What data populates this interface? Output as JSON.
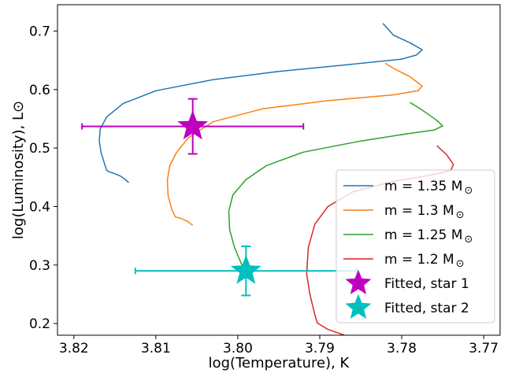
{
  "chart_data": {
    "type": "line",
    "xlabel": "log(Temperature), K",
    "ylabel": "log(Luminosity), L⊙",
    "xlim": [
      3.822,
      3.768
    ],
    "ylim": [
      0.18,
      0.745
    ],
    "x_reversed": true,
    "xticks": [
      3.82,
      3.81,
      3.8,
      3.79,
      3.78,
      3.77
    ],
    "xtick_labels": [
      "3.82",
      "3.81",
      "3.80",
      "3.79",
      "3.78",
      "3.77"
    ],
    "yticks": [
      0.2,
      0.3,
      0.4,
      0.5,
      0.6,
      0.7
    ],
    "ytick_labels": [
      "0.2",
      "0.3",
      "0.4",
      "0.5",
      "0.6",
      "0.7"
    ],
    "grid": false,
    "legend_position": "lower-right",
    "series": [
      {
        "name": "m = 1.35 M",
        "subscript": "⊙",
        "color": "#1f77b4",
        "points": [
          [
            3.8133,
            0.441
          ],
          [
            3.8138,
            0.447
          ],
          [
            3.8143,
            0.452
          ],
          [
            3.815,
            0.456
          ],
          [
            3.8158,
            0.46
          ],
          [
            3.816,
            0.462
          ],
          [
            3.8163,
            0.475
          ],
          [
            3.8167,
            0.493
          ],
          [
            3.8169,
            0.512
          ],
          [
            3.8168,
            0.532
          ],
          [
            3.816,
            0.553
          ],
          [
            3.814,
            0.576
          ],
          [
            3.81,
            0.598
          ],
          [
            3.803,
            0.617
          ],
          [
            3.795,
            0.631
          ],
          [
            3.787,
            0.642
          ],
          [
            3.78,
            0.652
          ],
          [
            3.7782,
            0.659
          ],
          [
            3.7775,
            0.668
          ],
          [
            3.779,
            0.68
          ],
          [
            3.781,
            0.693
          ],
          [
            3.7823,
            0.713
          ]
        ]
      },
      {
        "name": "m = 1.3 M",
        "subscript": "⊙",
        "color": "#ff7f0e",
        "points": [
          [
            3.8055,
            0.368
          ],
          [
            3.8062,
            0.375
          ],
          [
            3.807,
            0.38
          ],
          [
            3.8076,
            0.382
          ],
          [
            3.808,
            0.393
          ],
          [
            3.8085,
            0.418
          ],
          [
            3.8086,
            0.445
          ],
          [
            3.8083,
            0.47
          ],
          [
            3.8075,
            0.492
          ],
          [
            3.806,
            0.518
          ],
          [
            3.803,
            0.545
          ],
          [
            3.797,
            0.567
          ],
          [
            3.789,
            0.581
          ],
          [
            3.781,
            0.591
          ],
          [
            3.778,
            0.598
          ],
          [
            3.7775,
            0.606
          ],
          [
            3.779,
            0.622
          ],
          [
            3.781,
            0.636
          ],
          [
            3.782,
            0.645
          ]
        ]
      },
      {
        "name": "m = 1.25 M",
        "subscript": "⊙",
        "color": "#2ca02c",
        "points": [
          [
            3.799,
            0.283
          ],
          [
            3.7995,
            0.3
          ],
          [
            3.8004,
            0.33
          ],
          [
            3.801,
            0.36
          ],
          [
            3.8011,
            0.392
          ],
          [
            3.8006,
            0.42
          ],
          [
            3.799,
            0.446
          ],
          [
            3.7965,
            0.47
          ],
          [
            3.792,
            0.493
          ],
          [
            3.785,
            0.512
          ],
          [
            3.779,
            0.525
          ],
          [
            3.776,
            0.531
          ],
          [
            3.775,
            0.538
          ],
          [
            3.7757,
            0.547
          ],
          [
            3.7775,
            0.565
          ],
          [
            3.779,
            0.578
          ]
        ]
      },
      {
        "name": "m = 1.2 M",
        "subscript": "⊙",
        "color": "#d62728",
        "points": [
          [
            3.787,
            0.18
          ],
          [
            3.789,
            0.19
          ],
          [
            3.7903,
            0.201
          ],
          [
            3.7906,
            0.215
          ],
          [
            3.7912,
            0.25
          ],
          [
            3.7916,
            0.285
          ],
          [
            3.7914,
            0.33
          ],
          [
            3.7906,
            0.37
          ],
          [
            3.789,
            0.4
          ],
          [
            3.786,
            0.425
          ],
          [
            3.781,
            0.443
          ],
          [
            3.776,
            0.455
          ],
          [
            3.774,
            0.462
          ],
          [
            3.7737,
            0.472
          ],
          [
            3.7745,
            0.488
          ],
          [
            3.7757,
            0.504
          ]
        ]
      }
    ],
    "markers": [
      {
        "name": "Fitted, star 1",
        "color": "#bf00bf",
        "x": 3.8055,
        "y": 0.537,
        "xerr": 0.0135,
        "yerr": 0.047
      },
      {
        "name": "Fitted, star 2",
        "color": "#00bfbf",
        "x": 3.799,
        "y": 0.29,
        "xerr": 0.0135,
        "yerr": 0.042
      }
    ]
  }
}
